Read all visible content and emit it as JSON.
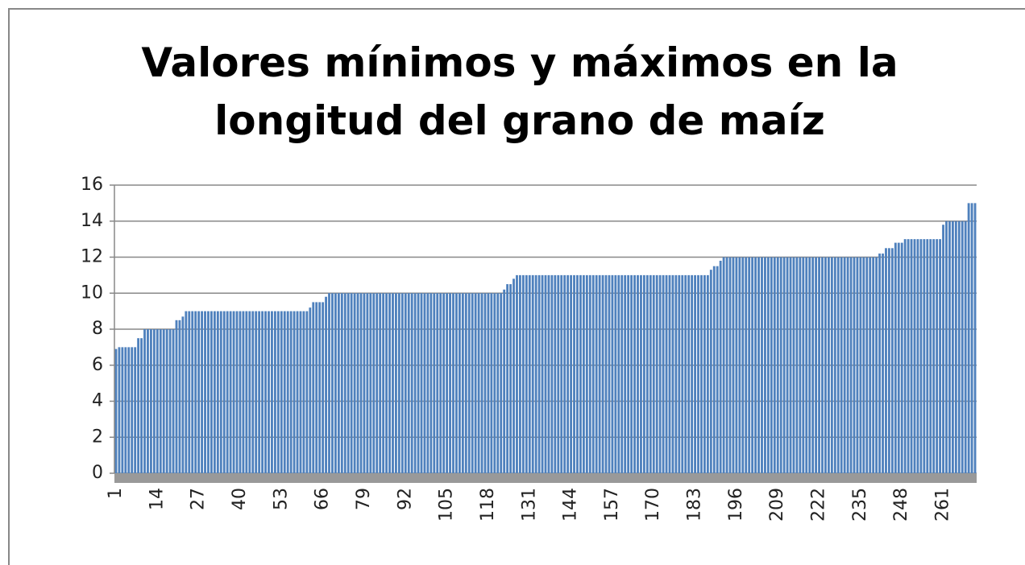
{
  "chart_data": {
    "type": "bar",
    "title": "Valores mínimos y máximos en la longitud del grano de maíz",
    "color": "#4f81bd",
    "grid": true,
    "ylim": [
      0,
      16
    ],
    "yticks": [
      0,
      2,
      4,
      6,
      8,
      10,
      12,
      14,
      16
    ],
    "categories": [
      "1",
      null,
      null,
      null,
      null,
      null,
      null,
      null,
      null,
      null,
      null,
      null,
      null,
      "14",
      null,
      null,
      null,
      null,
      null,
      null,
      null,
      null,
      null,
      null,
      null,
      null,
      "27",
      null,
      null,
      null,
      null,
      null,
      null,
      null,
      null,
      null,
      null,
      null,
      null,
      "40",
      null,
      null,
      null,
      null,
      null,
      null,
      null,
      null,
      null,
      null,
      null,
      null,
      "53",
      null,
      null,
      null,
      null,
      null,
      null,
      null,
      null,
      null,
      null,
      null,
      null,
      "66",
      null,
      null,
      null,
      null,
      null,
      null,
      null,
      null,
      null,
      null,
      null,
      null,
      "79",
      null,
      null,
      null,
      null,
      null,
      null,
      null,
      null,
      null,
      null,
      null,
      null,
      "92",
      null,
      null,
      null,
      null,
      null,
      null,
      null,
      null,
      null,
      null,
      null,
      null,
      "105",
      null,
      null,
      null,
      null,
      null,
      null,
      null,
      null,
      null,
      null,
      null,
      null,
      "118",
      null,
      null,
      null,
      null,
      null,
      null,
      null,
      null,
      null,
      null,
      null,
      null,
      "131",
      null,
      null,
      null,
      null,
      null,
      null,
      null,
      null,
      null,
      null,
      null,
      null,
      "144",
      null,
      null,
      null,
      null,
      null,
      null,
      null,
      null,
      null,
      null,
      null,
      null,
      "157",
      null,
      null,
      null,
      null,
      null,
      null,
      null,
      null,
      null,
      null,
      null,
      null,
      "170",
      null,
      null,
      null,
      null,
      null,
      null,
      null,
      null,
      null,
      null,
      null,
      null,
      "183",
      null,
      null,
      null,
      null,
      null,
      null,
      null,
      null,
      null,
      null,
      null,
      null,
      "196",
      null,
      null,
      null,
      null,
      null,
      null,
      null,
      null,
      null,
      null,
      null,
      null,
      "209",
      null,
      null,
      null,
      null,
      null,
      null,
      null,
      null,
      null,
      null,
      null,
      null,
      "222",
      null,
      null,
      null,
      null,
      null,
      null,
      null,
      null,
      null,
      null,
      null,
      null,
      "235",
      null,
      null,
      null,
      null,
      null,
      null,
      null,
      null,
      null,
      null,
      null,
      null,
      "248",
      null,
      null,
      null,
      null,
      null,
      null,
      null,
      null,
      null,
      null,
      null,
      null,
      "261",
      null,
      null,
      null,
      null,
      null,
      null,
      null,
      null,
      null,
      null
    ],
    "values": [
      6.9,
      7,
      7,
      7,
      7,
      7,
      7,
      7.5,
      7.5,
      8,
      8,
      8,
      8,
      8,
      8,
      8,
      8,
      8,
      8,
      8.5,
      8.5,
      8.7,
      9,
      9,
      9,
      9,
      9,
      9,
      9,
      9,
      9,
      9,
      9,
      9,
      9,
      9,
      9,
      9,
      9,
      9,
      9,
      9,
      9,
      9,
      9,
      9,
      9,
      9,
      9,
      9,
      9,
      9,
      9,
      9,
      9,
      9,
      9,
      9,
      9,
      9,
      9,
      9.2,
      9.5,
      9.5,
      9.5,
      9.5,
      9.8,
      10,
      10,
      10,
      10,
      10,
      10,
      10,
      10,
      10,
      10,
      10,
      10,
      10,
      10,
      10,
      10,
      10,
      10,
      10,
      10,
      10,
      10,
      10,
      10,
      10,
      10,
      10,
      10,
      10,
      10,
      10,
      10,
      10,
      10,
      10,
      10,
      10,
      10,
      10,
      10,
      10,
      10,
      10,
      10,
      10,
      10,
      10,
      10,
      10,
      10,
      10,
      10,
      10,
      10,
      10,
      10.2,
      10.5,
      10.5,
      10.8,
      11,
      11,
      11,
      11,
      11,
      11,
      11,
      11,
      11,
      11,
      11,
      11,
      11,
      11,
      11,
      11,
      11,
      11,
      11,
      11,
      11,
      11,
      11,
      11,
      11,
      11,
      11,
      11,
      11,
      11,
      11,
      11,
      11,
      11,
      11,
      11,
      11,
      11,
      11,
      11,
      11,
      11,
      11,
      11,
      11,
      11,
      11,
      11,
      11,
      11,
      11,
      11,
      11,
      11,
      11,
      11,
      11,
      11,
      11,
      11,
      11,
      11.3,
      11.5,
      11.5,
      11.8,
      12,
      12,
      12,
      12,
      12,
      12,
      12,
      12,
      12,
      12,
      12,
      12,
      12,
      12,
      12,
      12,
      12,
      12,
      12,
      12,
      12,
      12,
      12,
      12,
      12,
      12,
      12,
      12,
      12,
      12,
      12,
      12,
      12,
      12,
      12,
      12,
      12,
      12,
      12,
      12,
      12,
      12,
      12,
      12,
      12,
      12,
      12,
      12,
      12,
      12.2,
      12.2,
      12.5,
      12.5,
      12.5,
      12.8,
      12.8,
      12.8,
      13,
      13,
      13,
      13,
      13,
      13,
      13,
      13,
      13,
      13,
      13,
      13,
      13.8,
      14,
      14,
      14,
      14,
      14,
      14,
      14,
      15,
      15,
      15
    ]
  }
}
